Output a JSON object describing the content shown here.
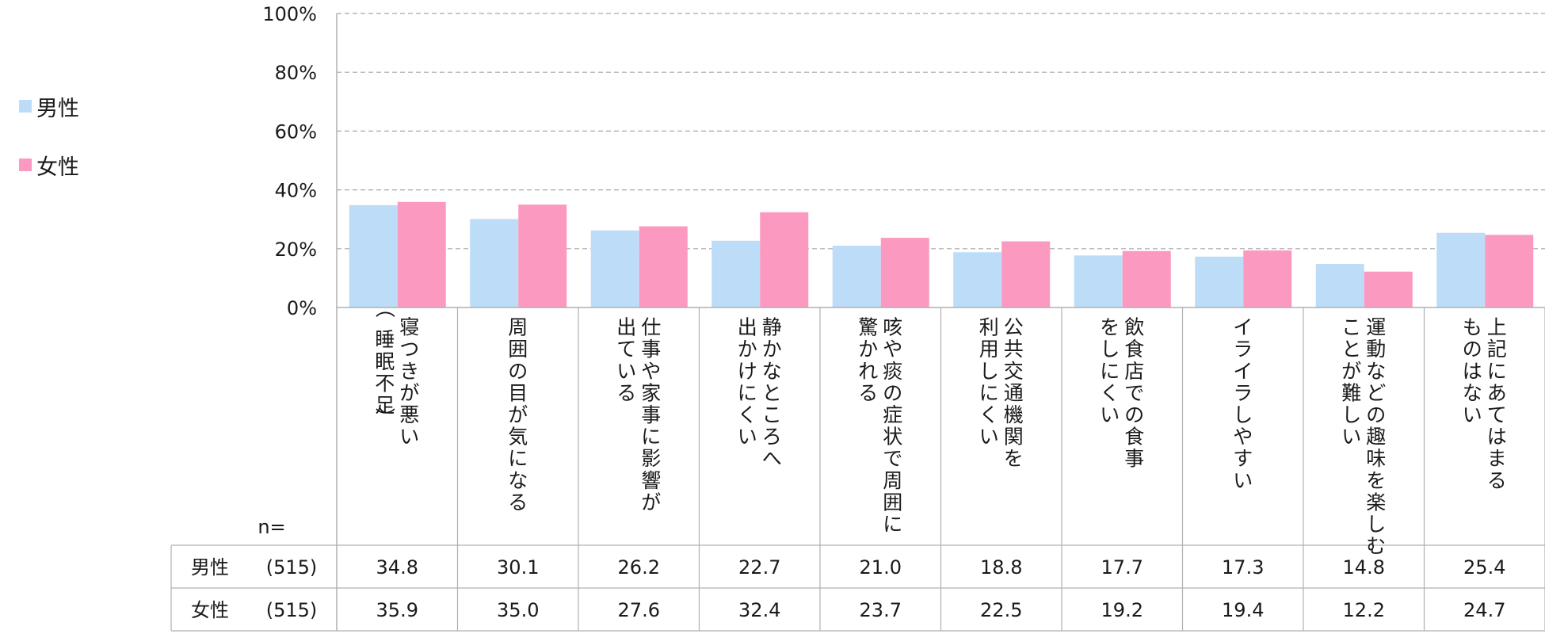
{
  "chart_data": {
    "type": "bar",
    "categories": [
      [
        "寝つきが悪い",
        "（睡眠不足）"
      ],
      [
        "周囲の目が気になる"
      ],
      [
        "仕事や家事に影響が",
        "出ている"
      ],
      [
        "静かなところへ",
        "出かけにくい"
      ],
      [
        "咳や痰の症状で周囲に",
        "驚かれる"
      ],
      [
        "公共交通機関を",
        "利用しにくい"
      ],
      [
        "飲食店での食事",
        "をしにくい"
      ],
      [
        "イライラしやすい"
      ],
      [
        "運動などの趣味を楽しむ",
        "ことが難しい"
      ],
      [
        "上記にあてはまる",
        "ものはない"
      ]
    ],
    "series": [
      {
        "name": "男性",
        "n": "(515)",
        "color": "#bddcf8",
        "values": [
          34.8,
          30.1,
          26.2,
          22.7,
          21.0,
          18.8,
          17.7,
          17.3,
          14.8,
          25.4
        ],
        "labels": [
          "34.8",
          "30.1",
          "26.2",
          "22.7",
          "21.0",
          "18.8",
          "17.7",
          "17.3",
          "14.8",
          "25.4"
        ]
      },
      {
        "name": "女性",
        "n": "(515)",
        "color": "#fb99c0",
        "values": [
          35.9,
          35.0,
          27.6,
          32.4,
          23.7,
          22.5,
          19.2,
          19.4,
          12.2,
          24.7
        ],
        "labels": [
          "35.9",
          "35.0",
          "27.6",
          "32.4",
          "23.7",
          "22.5",
          "19.2",
          "19.4",
          "12.2",
          "24.7"
        ]
      }
    ],
    "y_ticks": [
      "0%",
      "20%",
      "40%",
      "60%",
      "80%",
      "100%"
    ],
    "ylim": [
      0,
      100
    ],
    "grid": true,
    "legend_position": "left",
    "n_label": "n="
  }
}
